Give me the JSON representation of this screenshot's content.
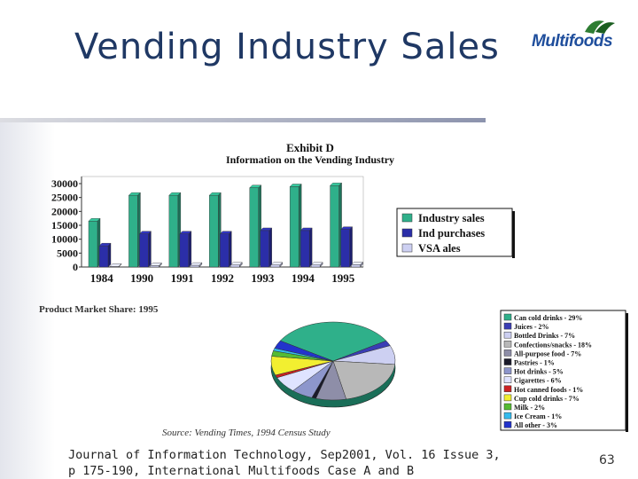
{
  "slide": {
    "title": "Vending Industry Sales",
    "logo_text": "Multifoods",
    "caption_line1": "Journal of Information Technology, Sep2001, Vol. 16 Issue 3,",
    "caption_line2": "p 175-190, International Multifoods Case A and B",
    "page_number": "63"
  },
  "chart_data": [
    {
      "type": "bar",
      "title": "Exhibit D",
      "subtitle": "Information on the Vending Industry",
      "categories": [
        "1984",
        "1990",
        "1991",
        "1992",
        "1993",
        "1994",
        "1995"
      ],
      "series": [
        {
          "name": "Industry sales",
          "values": [
            16500,
            25800,
            25800,
            25800,
            28500,
            28900,
            29300
          ],
          "color": "#2fb08a"
        },
        {
          "name": "Ind purchases",
          "values": [
            7600,
            11900,
            11900,
            11900,
            13100,
            13100,
            13500
          ],
          "color": "#2b2ea8"
        },
        {
          "name": "VSA ales",
          "values": [
            200,
            500,
            600,
            700,
            700,
            700,
            800
          ],
          "color": "#cdd0f2"
        }
      ],
      "yticks": [
        "30000",
        "25000",
        "20000",
        "15000",
        "10000",
        "5000",
        "0"
      ],
      "ylim": [
        0,
        30000
      ],
      "grid": false,
      "legend": "right"
    },
    {
      "type": "pie",
      "title": "Product Market Share: 1995",
      "source": "Source: Vending Times, 1994 Census Study",
      "slices": [
        {
          "label": "Can cold drinks - 29%",
          "value": 29,
          "color": "#2fb08a"
        },
        {
          "label": "Juices - 2%",
          "value": 2,
          "color": "#3a3db5"
        },
        {
          "label": "Bottled Drinks - 7%",
          "value": 7,
          "color": "#cdd0f2"
        },
        {
          "label": "Confections/snacks - 18%",
          "value": 18,
          "color": "#b8b8b8"
        },
        {
          "label": "All-purpose food - 7%",
          "value": 7,
          "color": "#8e8ea8"
        },
        {
          "label": "Pastries - 1%",
          "value": 1,
          "color": "#1a1a2a"
        },
        {
          "label": "Hot drinks - 5%",
          "value": 5,
          "color": "#8d96cc"
        },
        {
          "label": "Cigarettes - 6%",
          "value": 6,
          "color": "#dfe3ff"
        },
        {
          "label": "Hot canned foods - 1%",
          "value": 1,
          "color": "#cc2222"
        },
        {
          "label": "Cup cold drinks - 7%",
          "value": 7,
          "color": "#f2ef30"
        },
        {
          "label": "Milk - 2%",
          "value": 2,
          "color": "#55bb33"
        },
        {
          "label": "Ice Cream - 1%",
          "value": 1,
          "color": "#33bbee"
        },
        {
          "label": "All other - 3%",
          "value": 3,
          "color": "#2233cc"
        }
      ],
      "legend": "right"
    }
  ]
}
